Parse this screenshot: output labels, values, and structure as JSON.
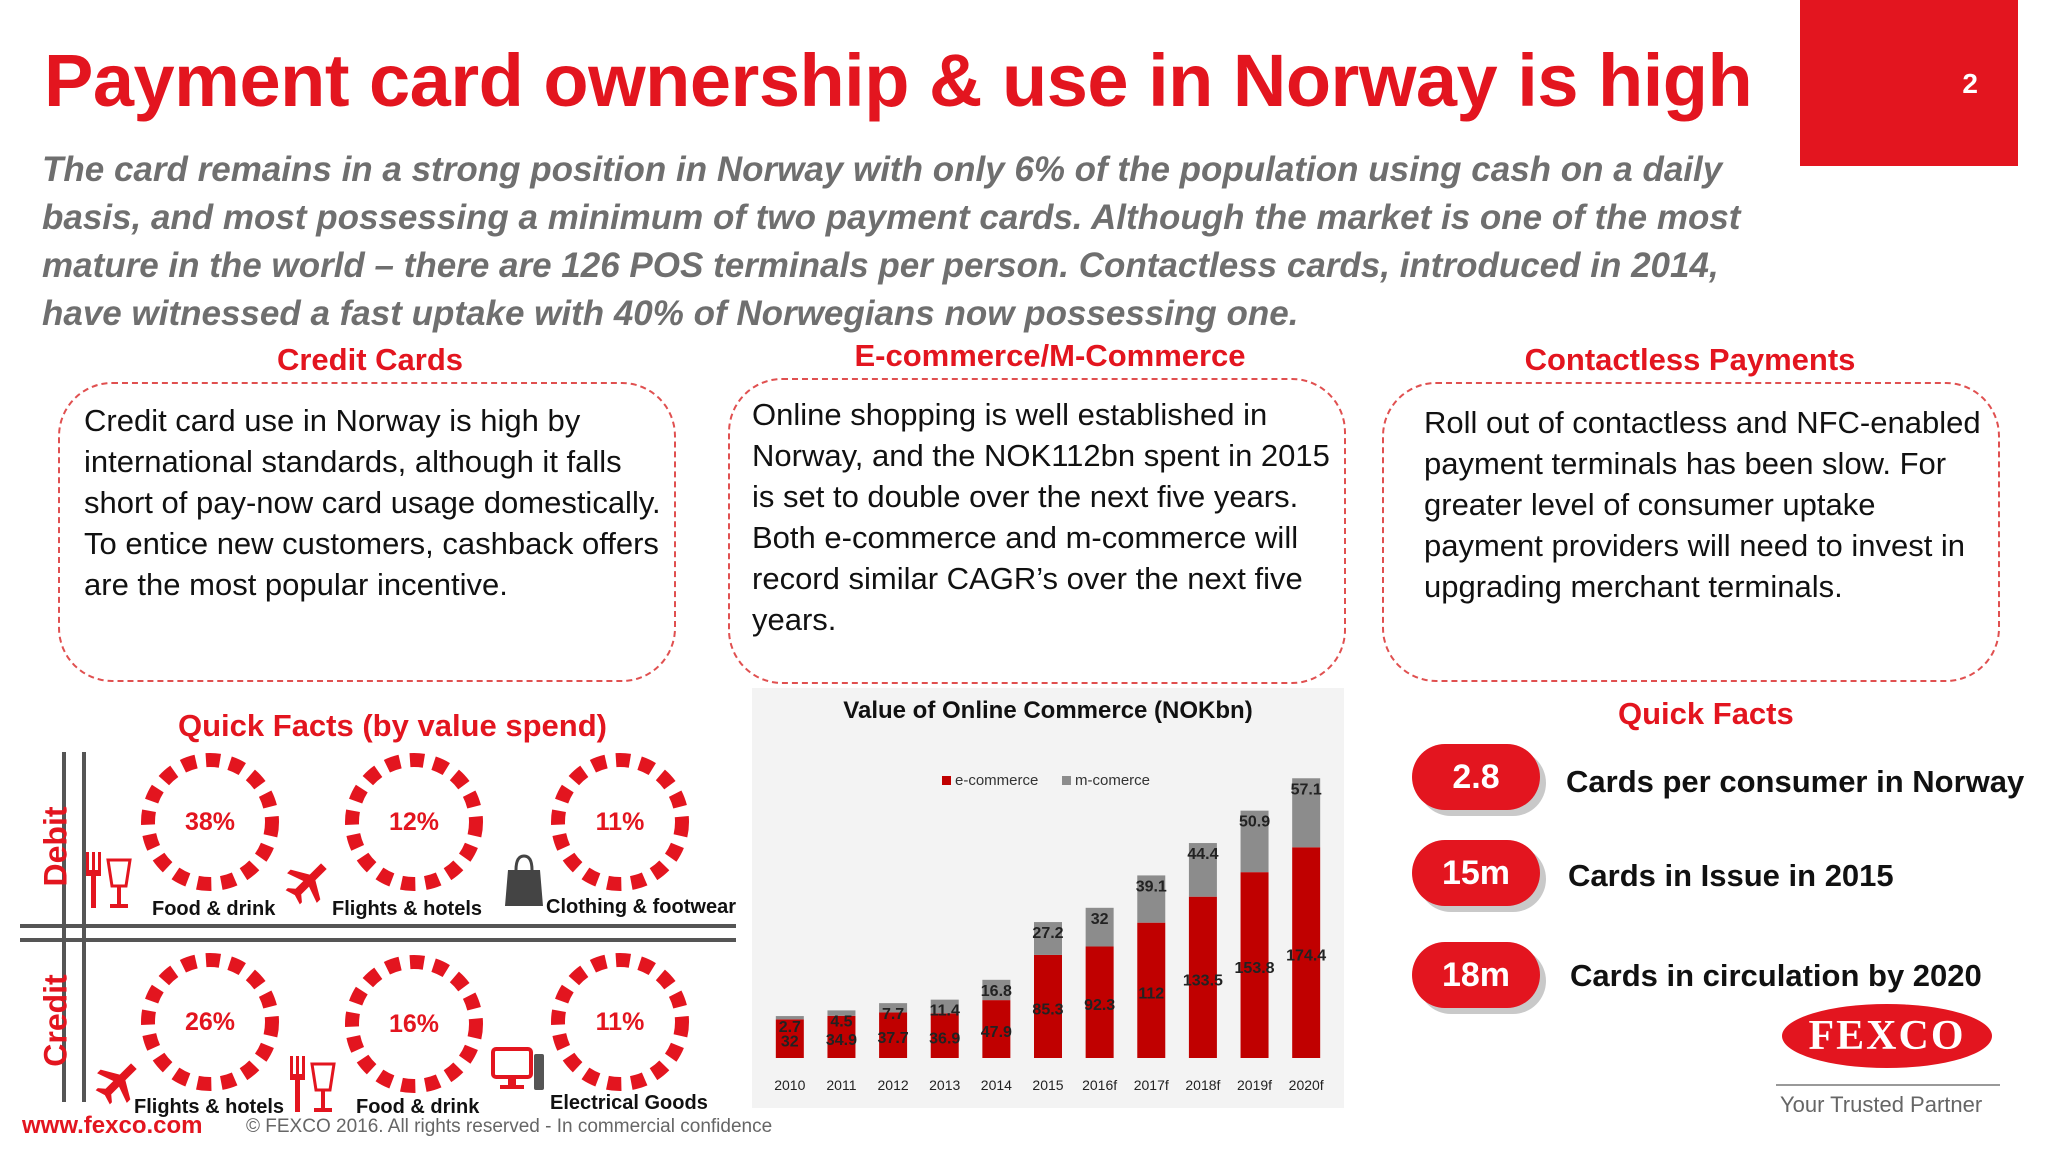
{
  "title": "Payment card ownership & use in Norway is high",
  "page_number": "2",
  "intro": "The card remains in a strong position in Norway with only 6% of the population using cash on a daily basis, and most possessing a minimum of two payment cards. Although the market is one of  the most mature in the world – there are 126 POS terminals per person. Contactless cards, introduced in 2014, have witnessed a fast uptake with 40% of Norwegians now possessing one.",
  "sections": {
    "credit": {
      "title": "Credit Cards",
      "text": "Credit card use in Norway is high by international standards, although it falls short of pay-now card usage domestically. To entice new customers, cashback offers are the most popular incentive."
    },
    "ecommerce": {
      "title": "E-commerce/M-Commerce",
      "text": "Online shopping is well established in Norway, and the NOK112bn spent in 2015 is set to double over the next five years.  Both e-commerce and m-commerce will record similar CAGR’s over the next five years."
    },
    "contactless": {
      "title": "Contactless Payments",
      "text": "Roll out of contactless and NFC-enabled payment terminals has been slow. For greater level of consumer uptake payment providers will need to invest in upgrading merchant terminals."
    }
  },
  "quick_facts_spend": {
    "title": "Quick Facts (by value spend)",
    "debit_label": "Debit",
    "credit_label": "Credit",
    "debit": [
      {
        "pct": "38%",
        "label": "Food & drink",
        "icon": "food-drink-icon"
      },
      {
        "pct": "12%",
        "label": "Flights & hotels",
        "icon": "airplane-icon"
      },
      {
        "pct": "11%",
        "label": "Clothing & footwear",
        "icon": "shopping-bag-icon"
      }
    ],
    "credit": [
      {
        "pct": "26%",
        "label": "Flights & hotels",
        "icon": "airplane-icon"
      },
      {
        "pct": "16%",
        "label": "Food & drink",
        "icon": "food-drink-icon"
      },
      {
        "pct": "11%",
        "label": "Electrical Goods",
        "icon": "computer-icon"
      }
    ]
  },
  "chart_data": {
    "type": "bar",
    "stacked": true,
    "title": "Value of Online Commerce (NOKbn)",
    "categories": [
      "2010",
      "2011",
      "2012",
      "2013",
      "2014",
      "2015",
      "2016f",
      "2017f",
      "2018f",
      "2019f",
      "2020f"
    ],
    "series": [
      {
        "name": "e-commerce",
        "color": "#c00000",
        "values": [
          32,
          34.9,
          37.7,
          36.9,
          47.9,
          85.3,
          92.3,
          112,
          133.5,
          153.8,
          174.4
        ]
      },
      {
        "name": "m-comerce",
        "color": "#8c8c8c",
        "values": [
          2.7,
          4.5,
          7.7,
          11.4,
          16.8,
          27.2,
          32,
          39.1,
          44.4,
          50.9,
          57.1
        ]
      }
    ],
    "legend": "top",
    "ylim": [
      0,
      240
    ]
  },
  "quick_facts": {
    "title": "Quick Facts",
    "items": [
      {
        "value": "2.8",
        "text": "Cards per consumer in Norway"
      },
      {
        "value": "15m",
        "text": "Cards in Issue in 2015"
      },
      {
        "value": "18m",
        "text": "Cards in circulation by 2020"
      }
    ]
  },
  "footer": {
    "url": "www.fexco.com",
    "rights": "© FEXCO 2016. All rights reserved - In commercial confidence"
  },
  "logo": {
    "name": "FEXCO",
    "tagline": "Your Trusted Partner"
  },
  "colors": {
    "accent": "#e3151f",
    "ecommerce": "#c00000",
    "mcommerce": "#8c8c8c"
  }
}
